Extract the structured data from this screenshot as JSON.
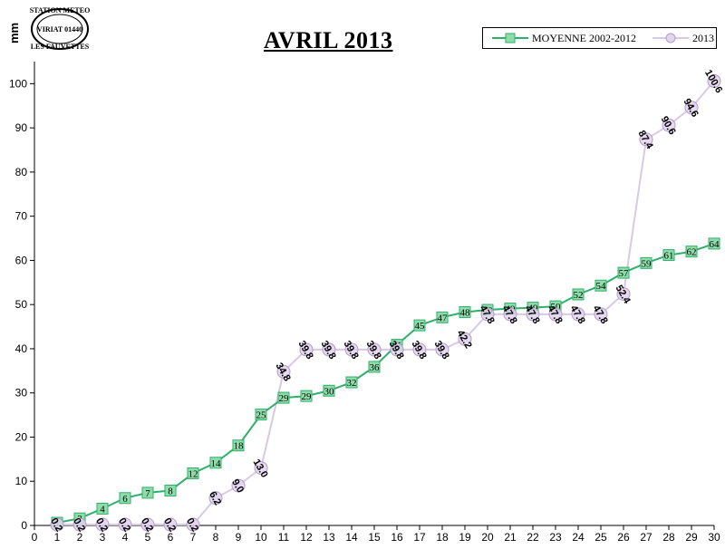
{
  "header": {
    "unit_label": "mm",
    "stamp_lines": [
      "STATION METEO",
      "VIRIAT 01440",
      "LES FAUVETTES"
    ]
  },
  "colors": {
    "avg_line": "#2fb06a",
    "avg_marker": "#8fdcab",
    "y2013_line": "#d9c8e6",
    "y2013_marker": "#e2d3ef",
    "y2013_marker_stroke": "#b49cc8"
  },
  "chart_data": {
    "type": "line",
    "title": "AVRIL 2013",
    "xlabel": "",
    "ylabel": "mm",
    "xlim": [
      0,
      30
    ],
    "ylim": [
      0,
      105
    ],
    "x_ticks": [
      0,
      1,
      2,
      3,
      4,
      5,
      6,
      7,
      8,
      9,
      10,
      11,
      12,
      13,
      14,
      15,
      16,
      17,
      18,
      19,
      20,
      21,
      22,
      23,
      24,
      25,
      26,
      27,
      28,
      29,
      30
    ],
    "y_ticks": [
      0,
      10,
      20,
      30,
      40,
      50,
      60,
      70,
      80,
      90,
      100
    ],
    "grid": false,
    "legend_position": "top-right",
    "series": [
      {
        "name": "MOYENNE 2002-2012",
        "x": [
          1,
          2,
          3,
          4,
          5,
          6,
          7,
          8,
          9,
          10,
          11,
          12,
          13,
          14,
          15,
          16,
          17,
          18,
          19,
          20,
          21,
          22,
          23,
          24,
          25,
          26,
          27,
          28,
          29,
          30
        ],
        "values": [
          0.6,
          1.6,
          3.8,
          6.2,
          7.4,
          7.9,
          11.8,
          14.2,
          18.1,
          25.1,
          28.9,
          29.3,
          30.5,
          32.4,
          35.9,
          40.9,
          45.3,
          47.1,
          48.3,
          48.8,
          49.1,
          49.3,
          49.6,
          52.3,
          54.3,
          57.2,
          59.4,
          61.2,
          62.0,
          63.8
        ],
        "labels": [
          "1",
          "2",
          "4",
          "6",
          "7",
          "8",
          "12",
          "14",
          "18",
          "25",
          "29",
          "29",
          "30",
          "32",
          "36",
          "41",
          "45",
          "47",
          "48",
          "49",
          "49",
          "49",
          "50",
          "52",
          "54",
          "57",
          "59",
          "61",
          "62",
          "64"
        ]
      },
      {
        "name": "2013",
        "x": [
          1,
          2,
          3,
          4,
          5,
          6,
          7,
          8,
          9,
          10,
          11,
          12,
          13,
          14,
          15,
          16,
          17,
          18,
          19,
          20,
          21,
          22,
          23,
          24,
          25,
          26,
          27,
          28,
          29,
          30
        ],
        "values": [
          0.2,
          0.2,
          0.2,
          0.2,
          0.2,
          0.2,
          0.2,
          6.2,
          9.0,
          13.0,
          34.8,
          39.8,
          39.8,
          39.8,
          39.8,
          39.8,
          39.8,
          39.8,
          42.2,
          47.8,
          47.8,
          47.8,
          47.8,
          47.8,
          47.8,
          52.4,
          87.4,
          90.6,
          94.6,
          100.6
        ],
        "labels": [
          "0.2",
          "0.2",
          "0.2",
          "0.2",
          "0.2",
          "0.2",
          "0.2",
          "6.2",
          "9.0",
          "13.0",
          "34.8",
          "39.8",
          "39.8",
          "39.8",
          "39.8",
          "39.8",
          "39.8",
          "39.8",
          "42.2",
          "47.8",
          "47.8",
          "47.8",
          "47.8",
          "47.8",
          "47.8",
          "52.4",
          "87.4",
          "90.6",
          "94.6",
          "100.6"
        ]
      }
    ]
  }
}
